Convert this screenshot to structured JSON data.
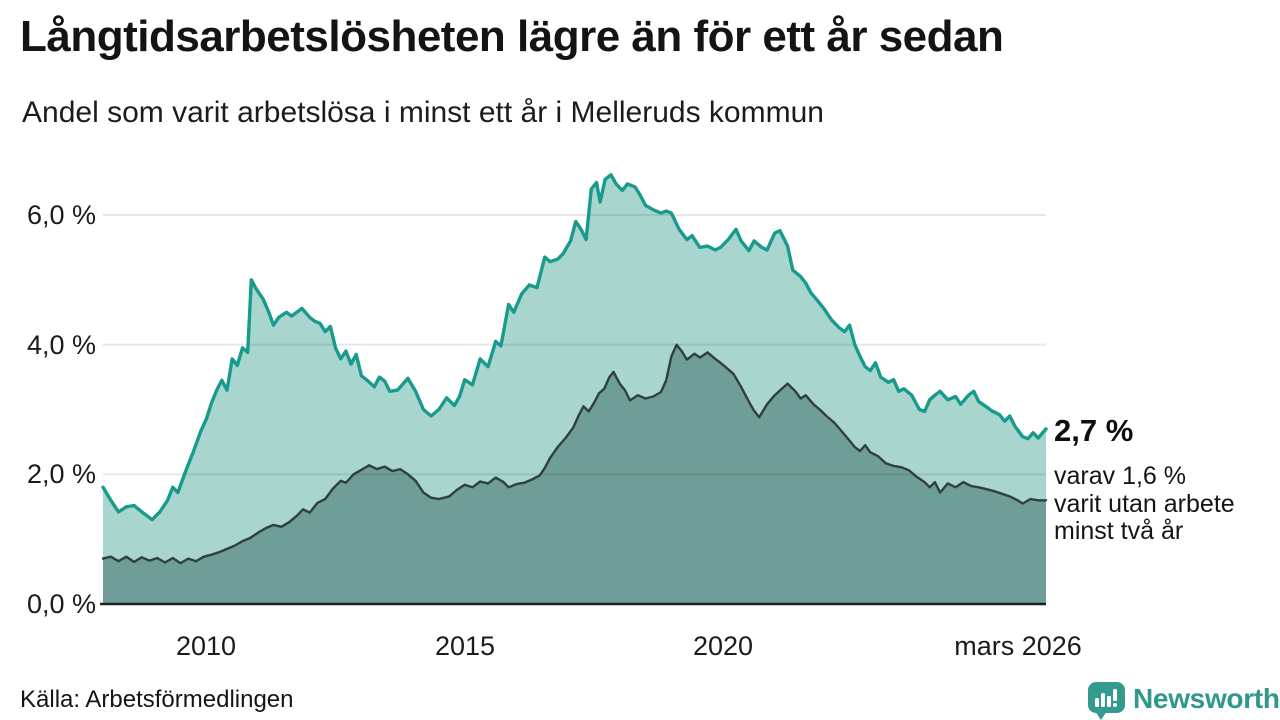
{
  "chart_data": {
    "type": "area",
    "title": "Långtidsarbetslösheten lägre än för ett år sedan",
    "subtitle": "Andel som varit arbetslösa i minst ett år i Melleruds kommun",
    "source": "Källa: Arbetsförmedlingen",
    "x_domain": [
      2008.0,
      2026.25
    ],
    "y_domain": [
      0,
      6.8
    ],
    "grid": true,
    "grid_color": "rgba(20,20,30,0.10)",
    "baseline_color": "#1d2221",
    "y_ticks": [
      {
        "value": 0,
        "label": "0,0 %"
      },
      {
        "value": 2,
        "label": "2,0 %"
      },
      {
        "value": 4,
        "label": "4,0 %"
      },
      {
        "value": 6,
        "label": "6,0 %"
      }
    ],
    "x_ticks": [
      {
        "value": 2010,
        "label": "2010"
      },
      {
        "value": 2015,
        "label": "2015"
      },
      {
        "value": 2020,
        "label": "2020"
      },
      {
        "value": 2026.25,
        "label": "mars 2026"
      }
    ],
    "annotation": {
      "headline": "2,7 %",
      "lines": [
        "varav 1,6 %",
        "varit utan arbete",
        "minst två år"
      ]
    },
    "series": [
      {
        "name": "Andel arbetslösa minst ett år",
        "line_color": "#189b8d",
        "fill_color": "#a8d5ce",
        "latest_value": "2,7 %",
        "points": [
          [
            2008.0,
            1.8
          ],
          [
            2008.15,
            1.6
          ],
          [
            2008.3,
            1.42
          ],
          [
            2008.45,
            1.5
          ],
          [
            2008.6,
            1.52
          ],
          [
            2008.75,
            1.42
          ],
          [
            2008.95,
            1.3
          ],
          [
            2009.1,
            1.42
          ],
          [
            2009.25,
            1.6
          ],
          [
            2009.35,
            1.8
          ],
          [
            2009.45,
            1.72
          ],
          [
            2009.6,
            2.05
          ],
          [
            2009.75,
            2.35
          ],
          [
            2009.9,
            2.68
          ],
          [
            2010.0,
            2.85
          ],
          [
            2010.1,
            3.1
          ],
          [
            2010.2,
            3.3
          ],
          [
            2010.3,
            3.45
          ],
          [
            2010.4,
            3.3
          ],
          [
            2010.5,
            3.78
          ],
          [
            2010.6,
            3.68
          ],
          [
            2010.7,
            3.95
          ],
          [
            2010.8,
            3.88
          ],
          [
            2010.87,
            5.0
          ],
          [
            2010.95,
            4.88
          ],
          [
            2011.1,
            4.7
          ],
          [
            2011.2,
            4.52
          ],
          [
            2011.3,
            4.3
          ],
          [
            2011.4,
            4.42
          ],
          [
            2011.55,
            4.5
          ],
          [
            2011.65,
            4.44
          ],
          [
            2011.75,
            4.5
          ],
          [
            2011.85,
            4.56
          ],
          [
            2012.0,
            4.42
          ],
          [
            2012.1,
            4.36
          ],
          [
            2012.2,
            4.33
          ],
          [
            2012.3,
            4.2
          ],
          [
            2012.4,
            4.28
          ],
          [
            2012.5,
            3.95
          ],
          [
            2012.6,
            3.78
          ],
          [
            2012.7,
            3.9
          ],
          [
            2012.8,
            3.7
          ],
          [
            2012.9,
            3.85
          ],
          [
            2013.0,
            3.52
          ],
          [
            2013.1,
            3.46
          ],
          [
            2013.25,
            3.35
          ],
          [
            2013.35,
            3.5
          ],
          [
            2013.45,
            3.44
          ],
          [
            2013.55,
            3.28
          ],
          [
            2013.7,
            3.3
          ],
          [
            2013.9,
            3.48
          ],
          [
            2014.05,
            3.28
          ],
          [
            2014.2,
            3.0
          ],
          [
            2014.35,
            2.9
          ],
          [
            2014.5,
            3.0
          ],
          [
            2014.65,
            3.18
          ],
          [
            2014.8,
            3.06
          ],
          [
            2014.9,
            3.2
          ],
          [
            2015.0,
            3.46
          ],
          [
            2015.15,
            3.38
          ],
          [
            2015.3,
            3.78
          ],
          [
            2015.45,
            3.66
          ],
          [
            2015.6,
            4.05
          ],
          [
            2015.7,
            3.98
          ],
          [
            2015.85,
            4.62
          ],
          [
            2015.95,
            4.5
          ],
          [
            2016.1,
            4.78
          ],
          [
            2016.25,
            4.92
          ],
          [
            2016.4,
            4.88
          ],
          [
            2016.55,
            5.35
          ],
          [
            2016.65,
            5.28
          ],
          [
            2016.8,
            5.32
          ],
          [
            2016.9,
            5.4
          ],
          [
            2017.05,
            5.6
          ],
          [
            2017.15,
            5.9
          ],
          [
            2017.25,
            5.78
          ],
          [
            2017.35,
            5.62
          ],
          [
            2017.45,
            6.4
          ],
          [
            2017.55,
            6.5
          ],
          [
            2017.62,
            6.2
          ],
          [
            2017.72,
            6.55
          ],
          [
            2017.83,
            6.62
          ],
          [
            2017.93,
            6.48
          ],
          [
            2018.05,
            6.38
          ],
          [
            2018.15,
            6.48
          ],
          [
            2018.3,
            6.43
          ],
          [
            2018.4,
            6.3
          ],
          [
            2018.5,
            6.15
          ],
          [
            2018.65,
            6.08
          ],
          [
            2018.8,
            6.03
          ],
          [
            2018.9,
            6.06
          ],
          [
            2019.0,
            6.03
          ],
          [
            2019.15,
            5.78
          ],
          [
            2019.3,
            5.62
          ],
          [
            2019.4,
            5.68
          ],
          [
            2019.55,
            5.5
          ],
          [
            2019.7,
            5.52
          ],
          [
            2019.85,
            5.46
          ],
          [
            2019.95,
            5.5
          ],
          [
            2020.1,
            5.62
          ],
          [
            2020.25,
            5.78
          ],
          [
            2020.35,
            5.6
          ],
          [
            2020.5,
            5.45
          ],
          [
            2020.6,
            5.6
          ],
          [
            2020.75,
            5.5
          ],
          [
            2020.85,
            5.46
          ],
          [
            2021.0,
            5.72
          ],
          [
            2021.1,
            5.76
          ],
          [
            2021.25,
            5.52
          ],
          [
            2021.35,
            5.15
          ],
          [
            2021.5,
            5.05
          ],
          [
            2021.6,
            4.95
          ],
          [
            2021.7,
            4.8
          ],
          [
            2021.85,
            4.66
          ],
          [
            2021.95,
            4.56
          ],
          [
            2022.1,
            4.38
          ],
          [
            2022.25,
            4.26
          ],
          [
            2022.35,
            4.2
          ],
          [
            2022.45,
            4.3
          ],
          [
            2022.55,
            4.0
          ],
          [
            2022.65,
            3.82
          ],
          [
            2022.75,
            3.66
          ],
          [
            2022.85,
            3.6
          ],
          [
            2022.95,
            3.72
          ],
          [
            2023.05,
            3.5
          ],
          [
            2023.2,
            3.42
          ],
          [
            2023.3,
            3.46
          ],
          [
            2023.4,
            3.28
          ],
          [
            2023.5,
            3.32
          ],
          [
            2023.65,
            3.22
          ],
          [
            2023.8,
            3.0
          ],
          [
            2023.9,
            2.97
          ],
          [
            2024.0,
            3.15
          ],
          [
            2024.1,
            3.22
          ],
          [
            2024.2,
            3.28
          ],
          [
            2024.35,
            3.15
          ],
          [
            2024.5,
            3.2
          ],
          [
            2024.6,
            3.08
          ],
          [
            2024.75,
            3.22
          ],
          [
            2024.85,
            3.28
          ],
          [
            2024.95,
            3.12
          ],
          [
            2025.1,
            3.04
          ],
          [
            2025.2,
            2.98
          ],
          [
            2025.35,
            2.92
          ],
          [
            2025.45,
            2.82
          ],
          [
            2025.55,
            2.9
          ],
          [
            2025.65,
            2.74
          ],
          [
            2025.8,
            2.58
          ],
          [
            2025.9,
            2.55
          ],
          [
            2026.0,
            2.64
          ],
          [
            2026.1,
            2.56
          ],
          [
            2026.25,
            2.7
          ]
        ]
      },
      {
        "name": "Andel arbetslösa minst två år",
        "line_color": "#2f403d",
        "fill_color": "#6f9d97",
        "latest_value": "1,6 %",
        "points": [
          [
            2008.0,
            0.7
          ],
          [
            2008.15,
            0.73
          ],
          [
            2008.3,
            0.66
          ],
          [
            2008.45,
            0.73
          ],
          [
            2008.6,
            0.65
          ],
          [
            2008.75,
            0.72
          ],
          [
            2008.9,
            0.67
          ],
          [
            2009.05,
            0.71
          ],
          [
            2009.2,
            0.64
          ],
          [
            2009.35,
            0.71
          ],
          [
            2009.5,
            0.63
          ],
          [
            2009.65,
            0.7
          ],
          [
            2009.8,
            0.66
          ],
          [
            2009.95,
            0.73
          ],
          [
            2010.1,
            0.76
          ],
          [
            2010.25,
            0.8
          ],
          [
            2010.4,
            0.85
          ],
          [
            2010.55,
            0.9
          ],
          [
            2010.7,
            0.97
          ],
          [
            2010.85,
            1.02
          ],
          [
            2011.0,
            1.1
          ],
          [
            2011.15,
            1.17
          ],
          [
            2011.3,
            1.22
          ],
          [
            2011.45,
            1.19
          ],
          [
            2011.6,
            1.26
          ],
          [
            2011.75,
            1.36
          ],
          [
            2011.87,
            1.46
          ],
          [
            2012.0,
            1.41
          ],
          [
            2012.15,
            1.56
          ],
          [
            2012.3,
            1.62
          ],
          [
            2012.45,
            1.78
          ],
          [
            2012.6,
            1.9
          ],
          [
            2012.7,
            1.87
          ],
          [
            2012.85,
            2.0
          ],
          [
            2013.0,
            2.07
          ],
          [
            2013.15,
            2.14
          ],
          [
            2013.3,
            2.08
          ],
          [
            2013.45,
            2.12
          ],
          [
            2013.6,
            2.05
          ],
          [
            2013.75,
            2.08
          ],
          [
            2013.9,
            2.0
          ],
          [
            2014.05,
            1.9
          ],
          [
            2014.2,
            1.72
          ],
          [
            2014.35,
            1.64
          ],
          [
            2014.5,
            1.62
          ],
          [
            2014.7,
            1.66
          ],
          [
            2014.85,
            1.76
          ],
          [
            2015.0,
            1.84
          ],
          [
            2015.15,
            1.8
          ],
          [
            2015.3,
            1.89
          ],
          [
            2015.45,
            1.86
          ],
          [
            2015.6,
            1.95
          ],
          [
            2015.75,
            1.88
          ],
          [
            2015.85,
            1.8
          ],
          [
            2016.0,
            1.85
          ],
          [
            2016.15,
            1.87
          ],
          [
            2016.3,
            1.92
          ],
          [
            2016.45,
            1.98
          ],
          [
            2016.55,
            2.1
          ],
          [
            2016.65,
            2.25
          ],
          [
            2016.8,
            2.42
          ],
          [
            2016.95,
            2.56
          ],
          [
            2017.1,
            2.72
          ],
          [
            2017.2,
            2.9
          ],
          [
            2017.3,
            3.05
          ],
          [
            2017.4,
            2.97
          ],
          [
            2017.5,
            3.1
          ],
          [
            2017.6,
            3.25
          ],
          [
            2017.7,
            3.32
          ],
          [
            2017.8,
            3.5
          ],
          [
            2017.88,
            3.58
          ],
          [
            2018.0,
            3.4
          ],
          [
            2018.1,
            3.3
          ],
          [
            2018.2,
            3.14
          ],
          [
            2018.35,
            3.22
          ],
          [
            2018.5,
            3.17
          ],
          [
            2018.65,
            3.2
          ],
          [
            2018.8,
            3.27
          ],
          [
            2018.9,
            3.45
          ],
          [
            2019.0,
            3.82
          ],
          [
            2019.1,
            4.0
          ],
          [
            2019.2,
            3.9
          ],
          [
            2019.3,
            3.77
          ],
          [
            2019.45,
            3.86
          ],
          [
            2019.55,
            3.8
          ],
          [
            2019.7,
            3.88
          ],
          [
            2019.85,
            3.78
          ],
          [
            2019.95,
            3.72
          ],
          [
            2020.1,
            3.62
          ],
          [
            2020.2,
            3.55
          ],
          [
            2020.35,
            3.35
          ],
          [
            2020.5,
            3.12
          ],
          [
            2020.6,
            2.98
          ],
          [
            2020.7,
            2.88
          ],
          [
            2020.85,
            3.08
          ],
          [
            2021.0,
            3.22
          ],
          [
            2021.15,
            3.33
          ],
          [
            2021.25,
            3.4
          ],
          [
            2021.4,
            3.28
          ],
          [
            2021.5,
            3.17
          ],
          [
            2021.6,
            3.22
          ],
          [
            2021.75,
            3.08
          ],
          [
            2021.9,
            2.98
          ],
          [
            2022.0,
            2.9
          ],
          [
            2022.15,
            2.8
          ],
          [
            2022.3,
            2.66
          ],
          [
            2022.45,
            2.52
          ],
          [
            2022.55,
            2.42
          ],
          [
            2022.65,
            2.36
          ],
          [
            2022.75,
            2.45
          ],
          [
            2022.85,
            2.34
          ],
          [
            2023.0,
            2.28
          ],
          [
            2023.15,
            2.17
          ],
          [
            2023.3,
            2.13
          ],
          [
            2023.45,
            2.11
          ],
          [
            2023.6,
            2.06
          ],
          [
            2023.75,
            1.96
          ],
          [
            2023.9,
            1.88
          ],
          [
            2024.0,
            1.8
          ],
          [
            2024.1,
            1.88
          ],
          [
            2024.2,
            1.72
          ],
          [
            2024.35,
            1.86
          ],
          [
            2024.5,
            1.8
          ],
          [
            2024.65,
            1.88
          ],
          [
            2024.8,
            1.82
          ],
          [
            2024.95,
            1.8
          ],
          [
            2025.1,
            1.77
          ],
          [
            2025.25,
            1.74
          ],
          [
            2025.4,
            1.7
          ],
          [
            2025.55,
            1.66
          ],
          [
            2025.7,
            1.6
          ],
          [
            2025.8,
            1.55
          ],
          [
            2025.95,
            1.62
          ],
          [
            2026.1,
            1.6
          ],
          [
            2026.25,
            1.6
          ]
        ]
      }
    ]
  },
  "brand": {
    "name": "Newsworthy",
    "text_color": "#2f988b",
    "icon_color": "#349a8d"
  }
}
